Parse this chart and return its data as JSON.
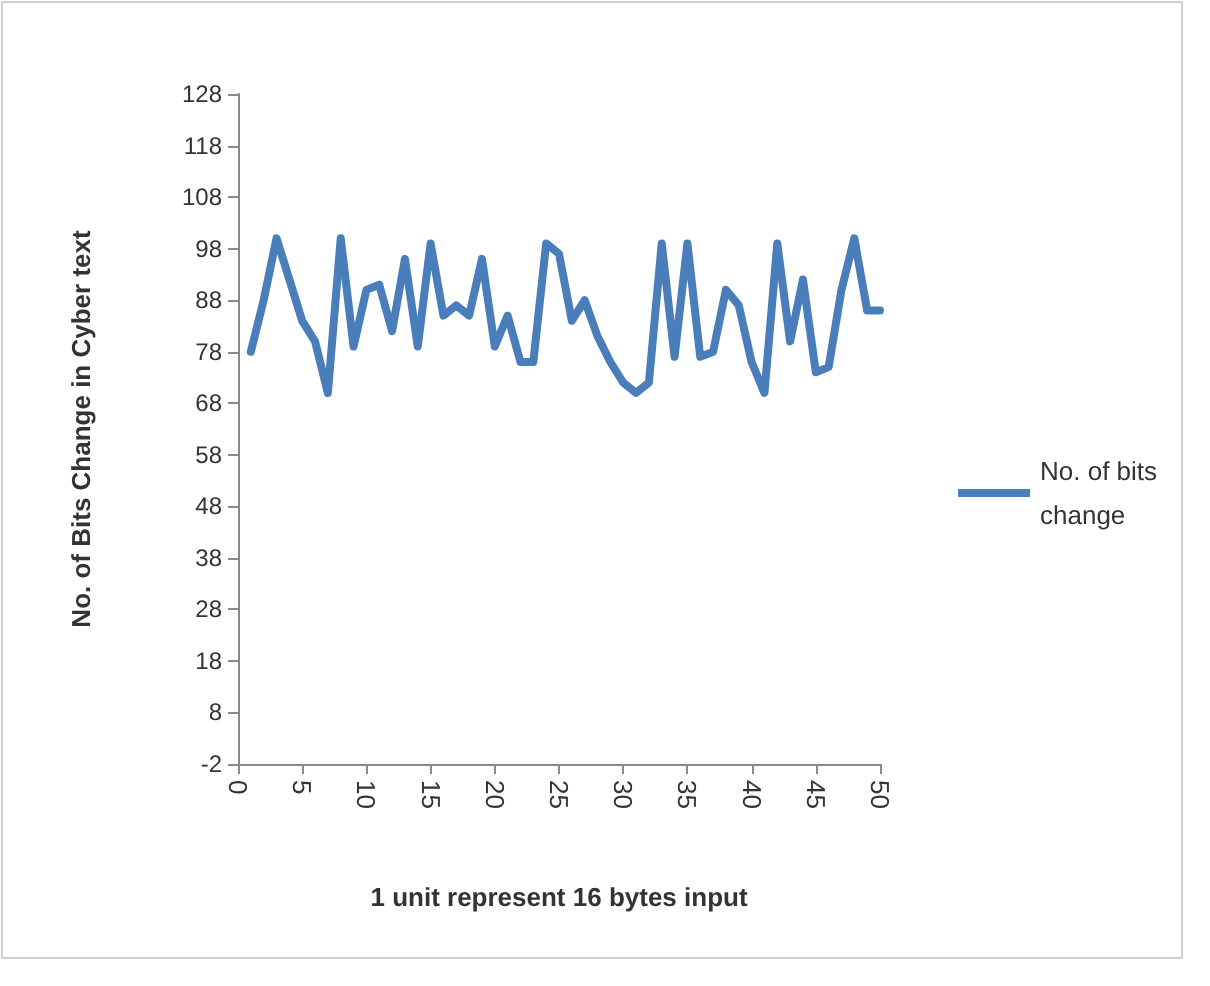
{
  "chart_data": {
    "type": "line",
    "xlabel": "1 unit represent 16 bytes input",
    "ylabel": "No. of Bits Change in Cyber text",
    "x": [
      1,
      2,
      3,
      4,
      5,
      6,
      7,
      8,
      9,
      10,
      11,
      12,
      13,
      14,
      15,
      16,
      17,
      18,
      19,
      20,
      21,
      22,
      23,
      24,
      25,
      26,
      27,
      28,
      29,
      30,
      31,
      32,
      33,
      34,
      35,
      36,
      37,
      38,
      39,
      40,
      41,
      42,
      43,
      44,
      45,
      46,
      47,
      48,
      49,
      50
    ],
    "series": [
      {
        "name": "No. of bits change",
        "color": "#4a7ebb",
        "values": [
          78,
          88,
          100,
          92,
          84,
          80,
          70,
          100,
          79,
          90,
          91,
          82,
          96,
          79,
          99,
          85,
          87,
          85,
          96,
          79,
          85,
          76,
          76,
          99,
          97,
          84,
          88,
          81,
          76,
          72,
          70,
          72,
          99,
          77,
          99,
          77,
          78,
          90,
          87,
          76,
          70,
          99,
          80,
          92,
          74,
          75,
          90,
          100,
          86,
          86
        ]
      }
    ],
    "xlim": [
      0,
      50
    ],
    "xticks": [
      0,
      5,
      10,
      15,
      20,
      25,
      30,
      35,
      40,
      45,
      50
    ],
    "ylim": [
      -2,
      128
    ],
    "yticks": [
      -2,
      8,
      18,
      28,
      38,
      48,
      58,
      68,
      78,
      88,
      98,
      108,
      118,
      128
    ],
    "legend": "right",
    "marker": "none",
    "line_style": "solid"
  }
}
